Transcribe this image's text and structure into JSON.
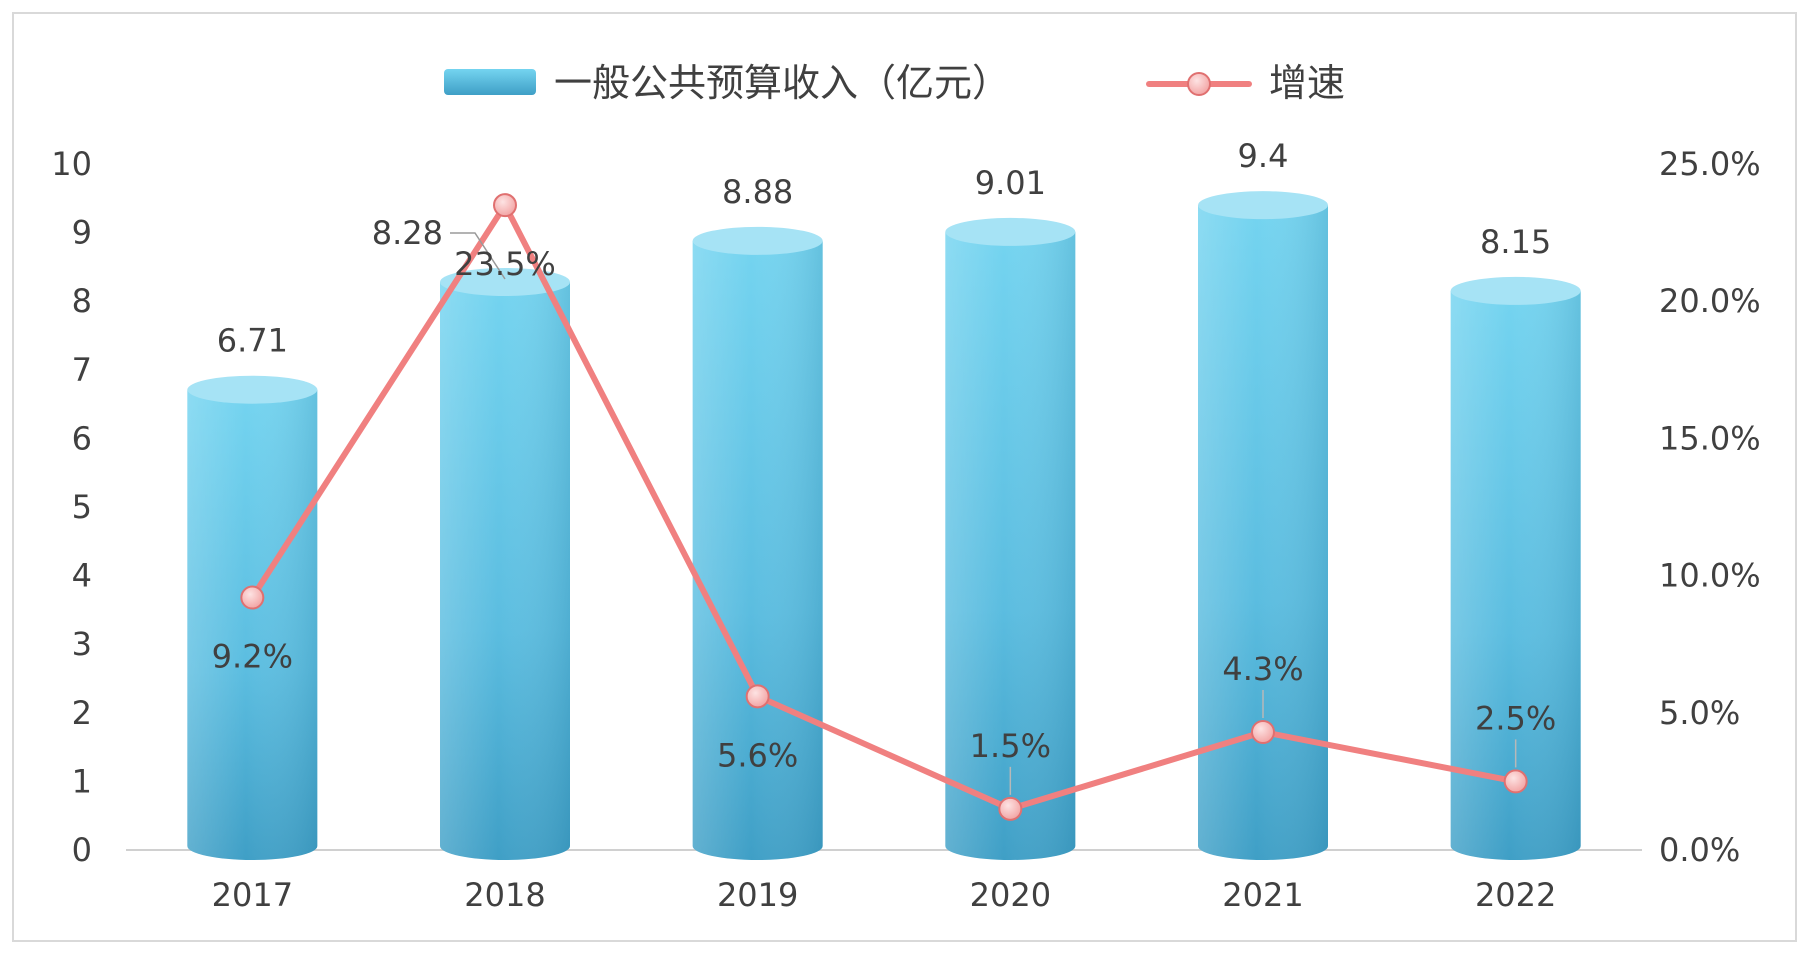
{
  "chart_data": {
    "type": "bar",
    "categories": [
      "2017",
      "2018",
      "2019",
      "2020",
      "2021",
      "2022"
    ],
    "series": [
      {
        "name": "一般公共预算收入（亿元）",
        "kind": "bar",
        "axis": "left",
        "values": [
          6.71,
          8.28,
          8.88,
          9.01,
          9.4,
          8.15
        ],
        "labels": [
          "6.71",
          "8.28",
          "8.88",
          "9.01",
          "9.4",
          "8.15"
        ],
        "color": "#5bc2e0"
      },
      {
        "name": "增速",
        "kind": "line",
        "axis": "right",
        "values": [
          9.2,
          23.5,
          5.6,
          1.5,
          4.3,
          2.5
        ],
        "labels": [
          "9.2%",
          "23.5%",
          "5.6%",
          "1.5%",
          "4.3%",
          "2.5%"
        ],
        "color": "#f08080"
      }
    ],
    "y_left": {
      "ylim": [
        0,
        10
      ],
      "ticks": [
        "0",
        "1",
        "2",
        "3",
        "4",
        "5",
        "6",
        "7",
        "8",
        "9",
        "10"
      ]
    },
    "y_right": {
      "ylim": [
        0,
        25
      ],
      "ticks": [
        "0.0%",
        "5.0%",
        "10.0%",
        "15.0%",
        "20.0%",
        "25.0%"
      ]
    },
    "legend": {
      "position": "top",
      "items": [
        "一般公共预算收入（亿元）",
        "增速"
      ]
    },
    "grid": false
  }
}
